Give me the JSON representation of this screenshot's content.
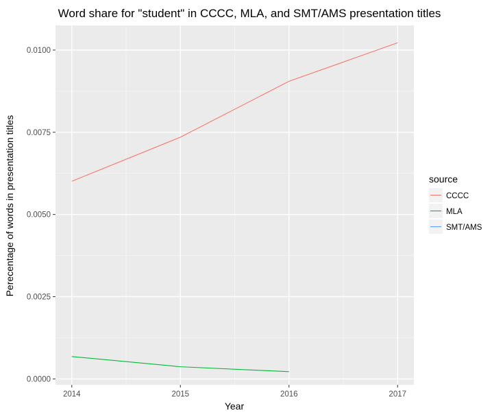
{
  "chart_data": {
    "type": "line",
    "title": "Word share for \"student\" in CCCC, MLA, and SMT/AMS presentation titles",
    "xlabel": "Year",
    "ylabel": "Perecentage of words in presentation titles",
    "xlim": [
      2013.85,
      2017.15
    ],
    "ylim": [
      -0.00018,
      0.01075
    ],
    "x_ticks": [
      2014,
      2015,
      2016,
      2017
    ],
    "x_tick_labels": [
      "2014",
      "2015",
      "2016",
      "2017"
    ],
    "y_ticks": [
      0.0,
      0.0025,
      0.005,
      0.0075,
      0.01
    ],
    "y_tick_labels": [
      "0.0000",
      "0.0025",
      "0.0050",
      "0.0075",
      "0.0100"
    ],
    "grid": true,
    "legend": {
      "title": "source",
      "position": "right"
    },
    "series": [
      {
        "name": "CCCC",
        "color": "#F8766D",
        "x": [
          2014,
          2015,
          2016,
          2017
        ],
        "y": [
          0.00601,
          0.00735,
          0.00905,
          0.01022
        ]
      },
      {
        "name": "MLA",
        "color": "#00BA38",
        "x": [
          2014,
          2015,
          2016
        ],
        "y": [
          0.00068,
          0.00037,
          0.00022
        ]
      },
      {
        "name": "SMT/AMS",
        "color": "#619CFF",
        "x": [],
        "y": []
      }
    ]
  }
}
